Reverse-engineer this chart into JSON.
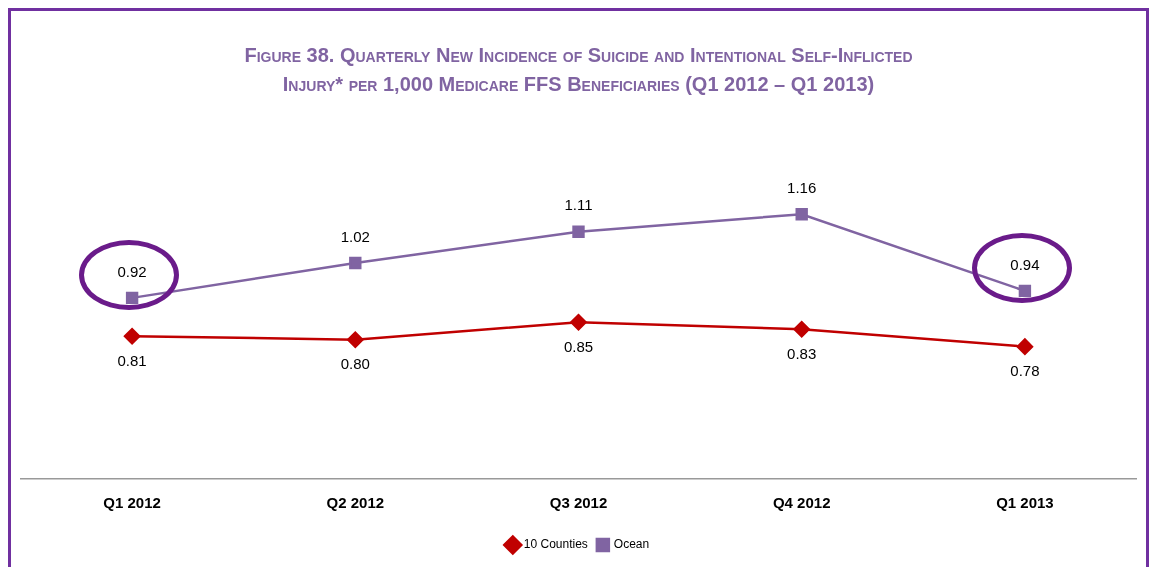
{
  "chart_data": {
    "type": "line",
    "title": "Figure 38. Quarterly New Incidence of Suicide and Intentional Self-Inflicted Injury* per 1,000 Medicare FFS Beneficiaries (Q1 2012 – Q1 2013)",
    "categories": [
      "Q1 2012",
      "Q2 2012",
      "Q3 2012",
      "Q4 2012",
      "Q1 2013"
    ],
    "series": [
      {
        "name": "10 Counties",
        "color": "#c00000",
        "values": [
          0.81,
          0.8,
          0.85,
          0.83,
          0.78
        ],
        "value_labels": [
          "0.81",
          "0.80",
          "0.85",
          "0.83",
          "0.78"
        ],
        "marker": "diamond"
      },
      {
        "name": "Ocean",
        "color": "#8064a2",
        "values": [
          0.92,
          1.02,
          1.11,
          1.16,
          0.94
        ],
        "value_labels": [
          "0.92",
          "1.02",
          "1.11",
          "1.16",
          "0.94"
        ],
        "marker": "square"
      }
    ],
    "legend": "bottom"
  }
}
